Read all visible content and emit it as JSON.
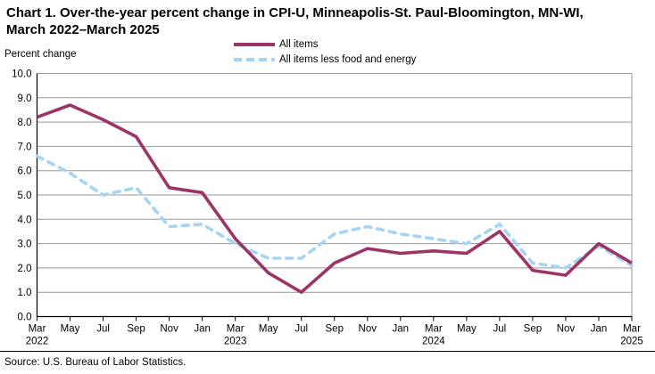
{
  "header": {
    "title_line1": "Chart 1. Over-the-year percent change in CPI-U, Minneapolis-St. Paul-Bloomington, MN-WI,",
    "title_line2": "March 2022–March 2025"
  },
  "chart_data": {
    "type": "line",
    "title": "Chart 1. Over-the-year percent change in CPI-U, Minneapolis-St. Paul-Bloomington, MN-WI, March 2022–March 2025",
    "ylabel": "Percent change",
    "xlabel": "",
    "ylim": [
      0.0,
      10.0
    ],
    "ytick_step": 1.0,
    "grid": true,
    "legend_position": "top",
    "grid_color": "#999999",
    "axis_color": "#000000",
    "categories": [
      "Mar 2022",
      "May 2022",
      "Jul 2022",
      "Sep 2022",
      "Nov 2022",
      "Jan 2023",
      "Mar 2023",
      "May 2023",
      "Jul 2023",
      "Sep 2023",
      "Nov 2023",
      "Jan 2024",
      "Mar 2024",
      "May 2024",
      "Jul 2024",
      "Sep 2024",
      "Nov 2024",
      "Jan 2025",
      "Mar 2025"
    ],
    "x_tick_labels": [
      "Mar",
      "May",
      "Jul",
      "Sep",
      "Nov",
      "Jan",
      "Mar",
      "May",
      "Jul",
      "Sep",
      "Nov",
      "Jan",
      "Mar",
      "May",
      "Jul",
      "Sep",
      "Nov",
      "Jan",
      "Mar"
    ],
    "x_year_labels": [
      {
        "index": 0,
        "year": "2022"
      },
      {
        "index": 6,
        "year": "2023"
      },
      {
        "index": 12,
        "year": "2024"
      },
      {
        "index": 18,
        "year": "2025"
      }
    ],
    "series": [
      {
        "key": "all-items",
        "name": "All items",
        "style": "solid",
        "color": "#9C3566",
        "values": [
          8.2,
          8.7,
          8.1,
          7.4,
          5.3,
          5.1,
          3.2,
          1.8,
          1.0,
          2.2,
          2.8,
          2.6,
          2.7,
          2.6,
          3.5,
          1.9,
          1.7,
          3.0,
          2.2
        ]
      },
      {
        "key": "all-items-less-food-and-energy",
        "name": "All items less food and energy",
        "style": "dashed",
        "color": "#A6D4F4",
        "values": [
          6.6,
          5.9,
          5.0,
          5.3,
          3.7,
          3.8,
          3.0,
          2.4,
          2.4,
          3.4,
          3.7,
          3.4,
          3.2,
          3.0,
          3.8,
          2.2,
          2.0,
          2.9,
          2.1
        ]
      }
    ]
  },
  "footer": {
    "source": "Source: U.S. Bureau of Labor Statistics."
  }
}
